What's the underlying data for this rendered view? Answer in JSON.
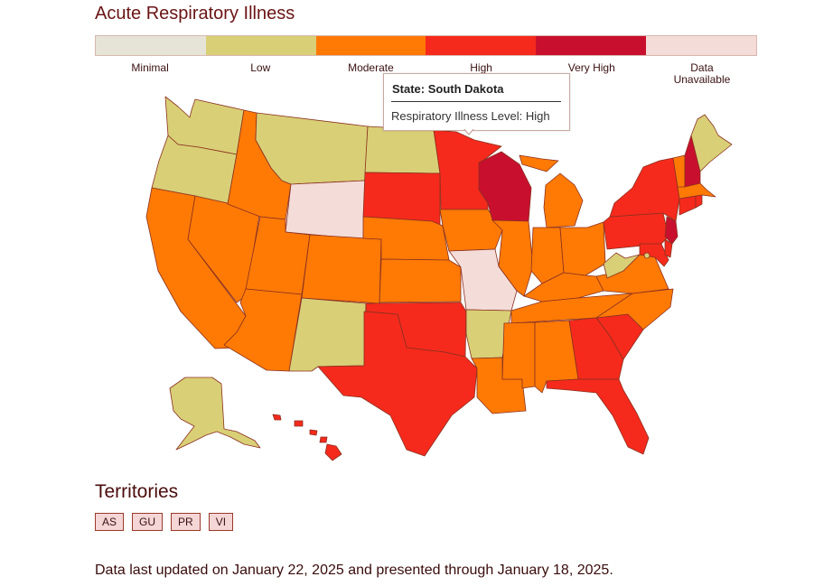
{
  "title": "Acute Respiratory Illness",
  "colors": {
    "minimal": "#e6e4d6",
    "low": "#d9cf76",
    "moderate": "#ff7a05",
    "high": "#f52a1c",
    "very_high": "#c8102e",
    "unavailable": "#f4dcd8"
  },
  "legend": [
    {
      "key": "minimal",
      "label": "Minimal"
    },
    {
      "key": "low",
      "label": "Low"
    },
    {
      "key": "moderate",
      "label": "Moderate"
    },
    {
      "key": "high",
      "label": "High"
    },
    {
      "key": "very_high",
      "label": "Very High"
    },
    {
      "key": "unavailable",
      "label": "Data\nUnavailable"
    }
  ],
  "tooltip": {
    "title": "State: South Dakota",
    "line": "Respiratory Illness Level: High"
  },
  "states": {
    "WA": "low",
    "OR": "low",
    "CA": "moderate",
    "NV": "moderate",
    "ID": "moderate",
    "MT": "low",
    "WY": "unavailable",
    "UT": "moderate",
    "AZ": "moderate",
    "CO": "moderate",
    "NM": "low",
    "ND": "low",
    "SD": "high",
    "NE": "moderate",
    "KS": "moderate",
    "OK": "high",
    "TX": "high",
    "MN": "high",
    "IA": "moderate",
    "MO": "unavailable",
    "AR": "low",
    "LA": "moderate",
    "WI": "very_high",
    "IL": "moderate",
    "MI": "moderate",
    "IN": "moderate",
    "OH": "moderate",
    "KY": "moderate",
    "TN": "moderate",
    "MS": "moderate",
    "AL": "moderate",
    "GA": "high",
    "FL": "high",
    "SC": "high",
    "NC": "moderate",
    "VA": "moderate",
    "WV": "low",
    "PA": "high",
    "NY": "high",
    "VT": "moderate",
    "NH": "very_high",
    "ME": "low",
    "MA": "moderate",
    "CT": "high",
    "RI": "high",
    "NJ": "very_high",
    "DE": "high",
    "MD": "high",
    "DC": "low",
    "AK": "low",
    "HI": "high"
  },
  "territories_title": "Territories",
  "territories": [
    "AS",
    "GU",
    "PR",
    "VI"
  ],
  "footer": "Data last updated on January 22, 2025 and presented through January 18, 2025."
}
